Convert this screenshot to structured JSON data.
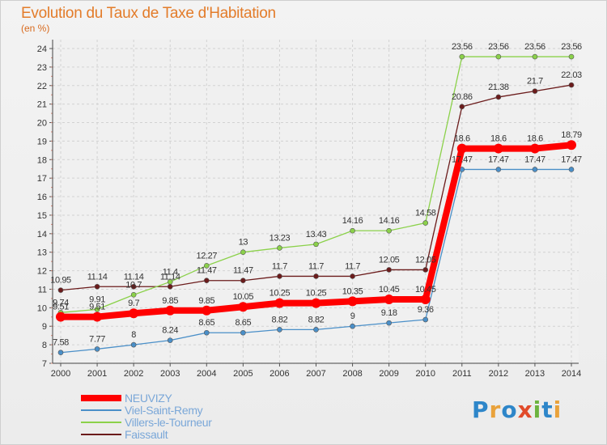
{
  "title": "Evolution du Taux de Taxe d'Habitation",
  "unit": "(en %)",
  "logo": {
    "letters": [
      "P",
      "r",
      "o",
      "x",
      "i",
      "t",
      "i"
    ],
    "colors": [
      "#2e86c9",
      "#e9a23b",
      "#2e86c9",
      "#e14b2a",
      "#6db33f",
      "#2e86c9",
      "#e9a23b"
    ]
  },
  "chart_data": {
    "type": "line",
    "x": [
      "2000",
      "2001",
      "2002",
      "2003",
      "2004",
      "2005",
      "2006",
      "2007",
      "2008",
      "2009",
      "2010",
      "2011",
      "2012",
      "2013",
      "2014"
    ],
    "ylim": [
      7,
      24
    ],
    "yticks": [
      7,
      8,
      9,
      10,
      11,
      12,
      13,
      14,
      15,
      16,
      17,
      18,
      19,
      20,
      21,
      22,
      23,
      24
    ],
    "grid": true,
    "legend_position": "bottom",
    "series": [
      {
        "name": "Faissault",
        "color": "#6b1b1b",
        "values": [
          10.95,
          11.14,
          11.14,
          11.14,
          11.47,
          11.47,
          11.7,
          11.7,
          11.7,
          12.05,
          12.05,
          20.86,
          21.38,
          21.7,
          22.03
        ],
        "labels": [
          "10.95",
          "11.14",
          "11.14",
          "11.14",
          "11.47",
          "11.47",
          "11.7",
          "11.7",
          "11.7",
          "12.05",
          "12.05",
          "20.86",
          "21.38",
          "21.7",
          "22.03"
        ]
      },
      {
        "name": "Villers-le-Tourneur",
        "color": "#8bd14a",
        "values": [
          9.74,
          9.91,
          10.7,
          11.4,
          12.27,
          13,
          13.23,
          13.43,
          14.16,
          14.16,
          14.58,
          23.56,
          23.56,
          23.56,
          23.56
        ],
        "labels": [
          "9.74",
          "9.91",
          "10.7",
          "11.4",
          "12.27",
          "13",
          "13.23",
          "13.43",
          "14.16",
          "14.16",
          "14.58",
          "23.56",
          "23.56",
          "23.56",
          "23.56"
        ]
      },
      {
        "name": "Viel-Saint-Remy",
        "color": "#4a8fc8",
        "values": [
          7.58,
          7.77,
          8,
          8.24,
          8.65,
          8.65,
          8.82,
          8.82,
          9,
          9.18,
          9.36,
          17.47,
          17.47,
          17.47,
          17.47
        ],
        "labels": [
          "7.58",
          "7.77",
          "8",
          "8.24",
          "8.65",
          "8.65",
          "8.82",
          "8.82",
          "9",
          "9.18",
          "9.36",
          "17.47",
          "17.47",
          "17.47",
          "17.47"
        ]
      },
      {
        "name": "NEUVIZY",
        "color": "#ff0000",
        "values": [
          9.51,
          9.51,
          9.7,
          9.85,
          9.85,
          10.05,
          10.25,
          10.25,
          10.35,
          10.45,
          10.45,
          18.6,
          18.6,
          18.6,
          18.79
        ],
        "labels": [
          "9.51",
          "9.51",
          "9.7",
          "9.85",
          "9.85",
          "10.05",
          "10.25",
          "10.25",
          "10.35",
          "10.45",
          "10.45",
          "18.6",
          "18.6",
          "18.6",
          "18.79"
        ]
      }
    ]
  },
  "legend": [
    {
      "name": "NEUVIZY",
      "color": "#ff0000"
    },
    {
      "name": "Viel-Saint-Remy",
      "color": "#4a8fc8"
    },
    {
      "name": "Villers-le-Tourneur",
      "color": "#8bd14a"
    },
    {
      "name": "Faissault",
      "color": "#6b1b1b"
    }
  ]
}
